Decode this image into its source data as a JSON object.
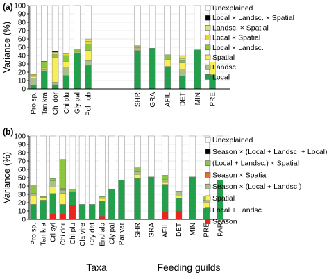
{
  "chart_data": [
    {
      "type": "bar",
      "panel_label": "(a)",
      "stacked": true,
      "ylabel": "Variance (%)",
      "ylim": [
        0,
        100
      ],
      "yticks": [
        0,
        10,
        20,
        30,
        40,
        50,
        60,
        70,
        80,
        90,
        100
      ],
      "groups": [
        {
          "label": "",
          "categories": [
            "Pro sp.",
            "Tan kra",
            "Chi dor",
            "Chi plu",
            "Gly pal",
            "Pol nub"
          ]
        },
        {
          "label": "",
          "categories": [
            "SHR",
            "GRA",
            "AFIL",
            "DET",
            "MIN",
            "PRE"
          ]
        }
      ],
      "legend_position": "right",
      "series": [
        {
          "name": "Local",
          "color": "#22a04b",
          "values": [
            4,
            21,
            5,
            16,
            43,
            28,
            46,
            49,
            27,
            15,
            47,
            17
          ]
        },
        {
          "name": "Landsc.",
          "color": "#a9c08a",
          "values": [
            9,
            2,
            3,
            10,
            2,
            6,
            2,
            0,
            0,
            9,
            0,
            0
          ]
        },
        {
          "name": "Spatial",
          "color": "#f7ef54",
          "values": [
            2,
            2,
            30,
            7,
            0,
            12,
            1,
            0,
            8,
            7,
            0,
            15
          ]
        },
        {
          "name": "Local × Landsc.",
          "color": "#8cc63f",
          "values": [
            2,
            7,
            3,
            7,
            3,
            8,
            1,
            0,
            6,
            3,
            0,
            0
          ]
        },
        {
          "name": "Local × Spatial",
          "color": "#f2d52a",
          "values": [
            1,
            0,
            2,
            2,
            0,
            3,
            1,
            0,
            0,
            2,
            0,
            0
          ]
        },
        {
          "name": "Landsc. × Spatial",
          "color": "#e3e36a",
          "values": [
            0,
            0,
            1,
            1,
            0,
            3,
            1,
            0,
            0,
            4,
            0,
            0
          ]
        },
        {
          "name": "Local × Landsc. × Spatial",
          "color": "#000000",
          "values": [
            0,
            1,
            1,
            0,
            0,
            0,
            0,
            0,
            0,
            0,
            0,
            0
          ]
        },
        {
          "name": "Unexplained",
          "color": "#ffffff",
          "values": [
            82,
            67,
            55,
            57,
            52,
            40,
            48,
            51,
            59,
            60,
            53,
            68
          ]
        }
      ]
    },
    {
      "type": "bar",
      "panel_label": "(b)",
      "stacked": true,
      "ylabel": "Variance (%)",
      "ylim": [
        0,
        100
      ],
      "yticks": [
        0,
        10,
        20,
        30,
        40,
        50,
        60,
        70,
        80,
        90,
        100
      ],
      "groups": [
        {
          "label": "Taxa",
          "categories": [
            "Pro sp.",
            "Tan kra",
            "Cri syl",
            "Chi dor",
            "Chi plu",
            "Cla vire",
            "Cry def",
            "End alb",
            "Gly pal",
            "Par var"
          ]
        },
        {
          "label": "Feeding guilds",
          "categories": [
            "SHR",
            "GRA",
            "AFIL",
            "DET",
            "MIN",
            "PRE",
            "PAR"
          ]
        }
      ],
      "legend_position": "right",
      "series": [
        {
          "name": "Season",
          "color": "#e8251e",
          "values": [
            0,
            0,
            6,
            7,
            17,
            0,
            0,
            4,
            0,
            0,
            0,
            0,
            9,
            10,
            0,
            0,
            0
          ]
        },
        {
          "name": "Local + Landsc.",
          "color": "#22a04b",
          "values": [
            18,
            23,
            25,
            11,
            16,
            18,
            18,
            18,
            36,
            47,
            49,
            51,
            33,
            15,
            51,
            13,
            47
          ]
        },
        {
          "name": "Spatial",
          "color": "#f7ef54",
          "values": [
            11,
            3,
            8,
            13,
            0,
            0,
            0,
            3,
            0,
            0,
            5,
            0,
            3,
            3,
            0,
            7,
            0
          ]
        },
        {
          "name": "Season × (Local + Landsc.)",
          "color": "#a9c08a",
          "values": [
            2,
            1,
            7,
            4,
            0,
            0,
            0,
            2,
            0,
            0,
            3,
            0,
            3,
            5,
            0,
            3,
            0
          ]
        },
        {
          "name": "Season × Spatial",
          "color": "#f26b21",
          "values": [
            0,
            0,
            0,
            2,
            0,
            0,
            0,
            0,
            0,
            0,
            0,
            0,
            0,
            0,
            0,
            0,
            0
          ]
        },
        {
          "name": "(Local + Landsc.) × Spatial",
          "color": "#8cc63f",
          "values": [
            10,
            1,
            3,
            35,
            3,
            0,
            0,
            1,
            0,
            0,
            5,
            0,
            5,
            1,
            0,
            4,
            0
          ]
        },
        {
          "name": "Season × (Local + Landsc. + Local)",
          "color": "#000000",
          "values": [
            0,
            0,
            0,
            0,
            0,
            0,
            0,
            0,
            0,
            0,
            0,
            0,
            0,
            0,
            0,
            0,
            0
          ]
        },
        {
          "name": "Unexplained",
          "color": "#ffffff",
          "values": [
            59,
            72,
            51,
            28,
            64,
            82,
            82,
            72,
            64,
            53,
            38,
            49,
            47,
            66,
            49,
            73,
            53
          ]
        }
      ]
    }
  ]
}
